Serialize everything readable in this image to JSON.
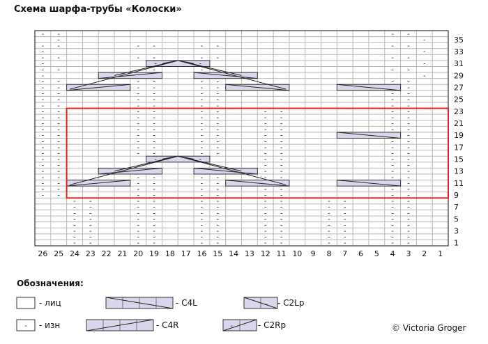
{
  "title": "Схема шарфа-трубы «Колоски»",
  "chart_data": {
    "type": "knitting-chart",
    "columns": 26,
    "rows": 36,
    "col_labels": [
      "26",
      "25",
      "24",
      "23",
      "22",
      "21",
      "20",
      "19",
      "18",
      "17",
      "16",
      "15",
      "14",
      "13",
      "12",
      "11",
      "10",
      "9",
      "8",
      "7",
      "6",
      "5",
      "4",
      "3",
      "2",
      "1"
    ],
    "row_labels": [
      "35",
      "33",
      "31",
      "29",
      "27",
      "25",
      "23",
      "21",
      "19",
      "17",
      "15",
      "13",
      "11",
      "9",
      "7",
      "5",
      "3",
      "1"
    ],
    "purl_symbol": "-",
    "repeat_rows": [
      9,
      23
    ],
    "repeat_cols": [
      1,
      24
    ],
    "repeat_color": "#e8231c",
    "cable_color": "#dcd6ec",
    "purl_cells": [
      [
        36,
        26
      ],
      [
        36,
        25
      ],
      [
        36,
        4
      ],
      [
        36,
        3
      ],
      [
        35,
        25
      ],
      [
        35,
        2
      ],
      [
        34,
        26
      ],
      [
        34,
        25
      ],
      [
        34,
        20
      ],
      [
        34,
        19
      ],
      [
        34,
        16
      ],
      [
        34,
        15
      ],
      [
        34,
        4
      ],
      [
        34,
        3
      ],
      [
        33,
        26
      ],
      [
        33,
        2
      ],
      [
        32,
        26
      ],
      [
        32,
        25
      ],
      [
        32,
        20
      ],
      [
        32,
        19
      ],
      [
        32,
        16
      ],
      [
        32,
        15
      ],
      [
        32,
        4
      ],
      [
        32,
        3
      ],
      [
        31,
        26
      ],
      [
        31,
        2
      ],
      [
        30,
        26
      ],
      [
        30,
        25
      ],
      [
        30,
        20
      ],
      [
        30,
        19
      ],
      [
        30,
        16
      ],
      [
        30,
        15
      ],
      [
        30,
        4
      ],
      [
        30,
        3
      ],
      [
        29,
        26
      ],
      [
        29,
        20
      ],
      [
        29,
        19
      ],
      [
        29,
        16
      ],
      [
        29,
        15
      ],
      [
        29,
        2
      ],
      [
        28,
        26
      ],
      [
        28,
        25
      ],
      [
        28,
        20
      ],
      [
        28,
        19
      ],
      [
        28,
        16
      ],
      [
        28,
        15
      ],
      [
        28,
        4
      ],
      [
        28,
        3
      ],
      [
        27,
        26
      ],
      [
        27,
        25
      ],
      [
        27,
        20
      ],
      [
        27,
        19
      ],
      [
        27,
        16
      ],
      [
        27,
        15
      ],
      [
        27,
        4
      ],
      [
        27,
        3
      ],
      [
        26,
        26
      ],
      [
        26,
        25
      ],
      [
        26,
        20
      ],
      [
        26,
        19
      ],
      [
        26,
        16
      ],
      [
        26,
        15
      ],
      [
        26,
        4
      ],
      [
        26,
        3
      ],
      [
        25,
        26
      ],
      [
        25,
        25
      ],
      [
        25,
        20
      ],
      [
        25,
        19
      ],
      [
        25,
        16
      ],
      [
        25,
        15
      ],
      [
        25,
        4
      ],
      [
        25,
        3
      ],
      [
        24,
        26
      ],
      [
        24,
        25
      ],
      [
        24,
        20
      ],
      [
        24,
        19
      ],
      [
        24,
        16
      ],
      [
        24,
        15
      ],
      [
        24,
        4
      ],
      [
        24,
        3
      ],
      [
        23,
        26
      ],
      [
        23,
        25
      ],
      [
        23,
        20
      ],
      [
        23,
        19
      ],
      [
        23,
        16
      ],
      [
        23,
        15
      ],
      [
        23,
        12
      ],
      [
        23,
        11
      ],
      [
        23,
        4
      ],
      [
        23,
        3
      ],
      [
        22,
        26
      ],
      [
        22,
        25
      ],
      [
        22,
        20
      ],
      [
        22,
        19
      ],
      [
        22,
        16
      ],
      [
        22,
        15
      ],
      [
        22,
        12
      ],
      [
        22,
        11
      ],
      [
        22,
        4
      ],
      [
        22,
        3
      ],
      [
        21,
        26
      ],
      [
        21,
        25
      ],
      [
        21,
        20
      ],
      [
        21,
        19
      ],
      [
        21,
        16
      ],
      [
        21,
        15
      ],
      [
        21,
        12
      ],
      [
        21,
        11
      ],
      [
        21,
        4
      ],
      [
        21,
        3
      ],
      [
        20,
        26
      ],
      [
        20,
        25
      ],
      [
        20,
        20
      ],
      [
        20,
        19
      ],
      [
        20,
        16
      ],
      [
        20,
        15
      ],
      [
        20,
        12
      ],
      [
        20,
        11
      ],
      [
        20,
        4
      ],
      [
        20,
        3
      ],
      [
        19,
        26
      ],
      [
        19,
        25
      ],
      [
        19,
        20
      ],
      [
        19,
        19
      ],
      [
        19,
        16
      ],
      [
        19,
        15
      ],
      [
        19,
        12
      ],
      [
        19,
        11
      ],
      [
        19,
        4
      ],
      [
        19,
        3
      ],
      [
        18,
        26
      ],
      [
        18,
        25
      ],
      [
        18,
        20
      ],
      [
        18,
        19
      ],
      [
        18,
        16
      ],
      [
        18,
        15
      ],
      [
        18,
        12
      ],
      [
        18,
        11
      ],
      [
        18,
        4
      ],
      [
        18,
        3
      ],
      [
        17,
        26
      ],
      [
        17,
        25
      ],
      [
        17,
        20
      ],
      [
        17,
        19
      ],
      [
        17,
        16
      ],
      [
        17,
        15
      ],
      [
        17,
        12
      ],
      [
        17,
        11
      ],
      [
        17,
        4
      ],
      [
        17,
        3
      ],
      [
        16,
        26
      ],
      [
        16,
        25
      ],
      [
        16,
        20
      ],
      [
        16,
        19
      ],
      [
        16,
        16
      ],
      [
        16,
        15
      ],
      [
        16,
        12
      ],
      [
        16,
        11
      ],
      [
        16,
        4
      ],
      [
        16,
        3
      ],
      [
        15,
        26
      ],
      [
        15,
        25
      ],
      [
        15,
        16
      ],
      [
        15,
        12
      ],
      [
        15,
        11
      ],
      [
        15,
        4
      ],
      [
        15,
        3
      ],
      [
        14,
        26
      ],
      [
        14,
        25
      ],
      [
        14,
        12
      ],
      [
        14,
        11
      ],
      [
        14,
        4
      ],
      [
        14,
        3
      ],
      [
        13,
        26
      ],
      [
        13,
        25
      ],
      [
        13,
        12
      ],
      [
        13,
        11
      ],
      [
        13,
        4
      ],
      [
        13,
        3
      ],
      [
        12,
        26
      ],
      [
        12,
        25
      ],
      [
        12,
        20
      ],
      [
        12,
        19
      ],
      [
        12,
        16
      ],
      [
        12,
        15
      ],
      [
        12,
        12
      ],
      [
        12,
        11
      ],
      [
        12,
        4
      ],
      [
        12,
        3
      ],
      [
        11,
        26
      ],
      [
        11,
        25
      ],
      [
        11,
        20
      ],
      [
        11,
        19
      ],
      [
        11,
        16
      ],
      [
        11,
        15
      ],
      [
        11,
        12
      ],
      [
        11,
        11
      ],
      [
        11,
        4
      ],
      [
        11,
        3
      ],
      [
        10,
        26
      ],
      [
        10,
        25
      ],
      [
        10,
        20
      ],
      [
        10,
        19
      ],
      [
        10,
        16
      ],
      [
        10,
        15
      ],
      [
        10,
        12
      ],
      [
        10,
        11
      ],
      [
        10,
        4
      ],
      [
        10,
        3
      ],
      [
        9,
        26
      ],
      [
        9,
        25
      ],
      [
        9,
        20
      ],
      [
        9,
        19
      ],
      [
        9,
        16
      ],
      [
        9,
        15
      ],
      [
        9,
        12
      ],
      [
        9,
        11
      ],
      [
        9,
        4
      ],
      [
        9,
        3
      ],
      [
        8,
        24
      ],
      [
        8,
        23
      ],
      [
        8,
        20
      ],
      [
        8,
        19
      ],
      [
        8,
        16
      ],
      [
        8,
        15
      ],
      [
        8,
        12
      ],
      [
        8,
        11
      ],
      [
        8,
        8
      ],
      [
        8,
        7
      ],
      [
        8,
        4
      ],
      [
        8,
        3
      ],
      [
        7,
        24
      ],
      [
        7,
        23
      ],
      [
        7,
        20
      ],
      [
        7,
        19
      ],
      [
        7,
        16
      ],
      [
        7,
        15
      ],
      [
        7,
        12
      ],
      [
        7,
        11
      ],
      [
        7,
        8
      ],
      [
        7,
        7
      ],
      [
        7,
        4
      ],
      [
        7,
        3
      ],
      [
        6,
        24
      ],
      [
        6,
        23
      ],
      [
        6,
        20
      ],
      [
        6,
        19
      ],
      [
        6,
        16
      ],
      [
        6,
        15
      ],
      [
        6,
        12
      ],
      [
        6,
        11
      ],
      [
        6,
        8
      ],
      [
        6,
        7
      ],
      [
        6,
        4
      ],
      [
        6,
        3
      ],
      [
        5,
        24
      ],
      [
        5,
        23
      ],
      [
        5,
        20
      ],
      [
        5,
        19
      ],
      [
        5,
        16
      ],
      [
        5,
        15
      ],
      [
        5,
        12
      ],
      [
        5,
        11
      ],
      [
        5,
        8
      ],
      [
        5,
        7
      ],
      [
        5,
        4
      ],
      [
        5,
        3
      ],
      [
        4,
        24
      ],
      [
        4,
        23
      ],
      [
        4,
        20
      ],
      [
        4,
        19
      ],
      [
        4,
        16
      ],
      [
        4,
        15
      ],
      [
        4,
        12
      ],
      [
        4,
        11
      ],
      [
        4,
        8
      ],
      [
        4,
        7
      ],
      [
        4,
        4
      ],
      [
        4,
        3
      ],
      [
        3,
        24
      ],
      [
        3,
        23
      ],
      [
        3,
        20
      ],
      [
        3,
        19
      ],
      [
        3,
        16
      ],
      [
        3,
        15
      ],
      [
        3,
        12
      ],
      [
        3,
        11
      ],
      [
        3,
        8
      ],
      [
        3,
        7
      ],
      [
        3,
        4
      ],
      [
        3,
        3
      ],
      [
        2,
        24
      ],
      [
        2,
        23
      ],
      [
        2,
        20
      ],
      [
        2,
        19
      ],
      [
        2,
        16
      ],
      [
        2,
        15
      ],
      [
        2,
        12
      ],
      [
        2,
        11
      ],
      [
        2,
        8
      ],
      [
        2,
        7
      ],
      [
        2,
        4
      ],
      [
        2,
        3
      ],
      [
        1,
        24
      ],
      [
        1,
        23
      ],
      [
        1,
        20
      ],
      [
        1,
        19
      ],
      [
        1,
        16
      ],
      [
        1,
        15
      ],
      [
        1,
        12
      ],
      [
        1,
        11
      ],
      [
        1,
        8
      ],
      [
        1,
        7
      ],
      [
        1,
        4
      ],
      [
        1,
        3
      ]
    ],
    "cables": [
      {
        "row": 31,
        "type": "C2Lp",
        "col_from": 19,
        "col_to": 16
      },
      {
        "row": 29,
        "type": "C4R",
        "col_from": 22,
        "col_to": 19
      },
      {
        "row": 29,
        "type": "C4L",
        "col_from": 16,
        "col_to": 13
      },
      {
        "row": 27,
        "type": "C4R",
        "col_from": 24,
        "col_to": 21
      },
      {
        "row": 27,
        "type": "C4L",
        "col_from": 14,
        "col_to": 11
      },
      {
        "row": 27,
        "type": "C4L",
        "col_from": 7,
        "col_to": 4
      },
      {
        "row": 19,
        "type": "C4L",
        "col_from": 7,
        "col_to": 4
      },
      {
        "row": 15,
        "type": "C2Lp",
        "col_from": 19,
        "col_to": 16
      },
      {
        "row": 13,
        "type": "C4R",
        "col_from": 22,
        "col_to": 19
      },
      {
        "row": 13,
        "type": "C4L",
        "col_from": 16,
        "col_to": 13
      },
      {
        "row": 11,
        "type": "C4R",
        "col_from": 24,
        "col_to": 21
      },
      {
        "row": 11,
        "type": "C4L",
        "col_from": 14,
        "col_to": 11
      },
      {
        "row": 11,
        "type": "C4L",
        "col_from": 7,
        "col_to": 4
      }
    ],
    "peaks": [
      {
        "row": 32,
        "col": 17.5
      },
      {
        "row": 16,
        "col": 17.5
      }
    ]
  },
  "legend": {
    "title": "Обозначения:",
    "knit_label": "- лиц",
    "purl_label": "- изн",
    "purl_symbol": "-",
    "c4l_label": "- C4L",
    "c4r_label": "- C4R",
    "c2lp_label": "- C2Lp",
    "c2rp_label": "- C2Rp"
  },
  "copyright": "© Victoria Groger"
}
